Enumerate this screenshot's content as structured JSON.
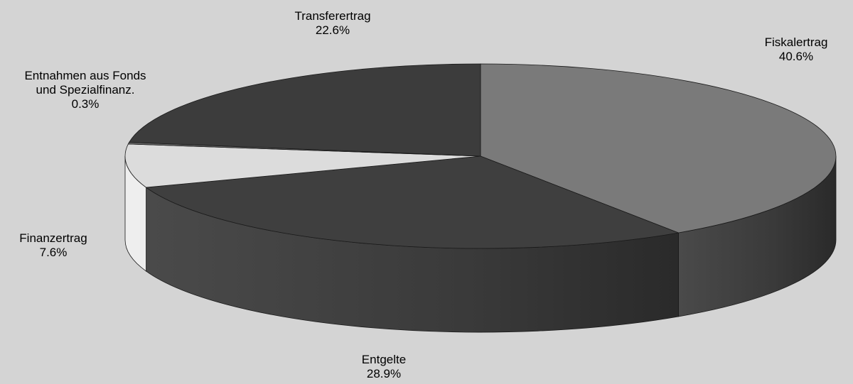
{
  "chart_data": {
    "type": "pie",
    "style": "3d",
    "slices": [
      {
        "label": "Fiskalertrag",
        "percent_label": "40.6%",
        "value": 40.6,
        "color": "#7a7a7a"
      },
      {
        "label": "Entgelte",
        "percent_label": "28.9%",
        "value": 28.9,
        "color": "#3f3f3f"
      },
      {
        "label": "Finanzertrag",
        "percent_label": "7.6%",
        "value": 7.6,
        "color": "#dcdcdc"
      },
      {
        "label": "Entnahmen aus Fonds und Spezialfinanz.",
        "label_lines": [
          "Entnahmen aus Fonds",
          "und Spezialfinanz."
        ],
        "percent_label": "0.3%",
        "value": 0.3,
        "color": "#6a6a6a"
      },
      {
        "label": "Transferertrag",
        "percent_label": "22.6%",
        "value": 22.6,
        "color": "#3c3c3c"
      }
    ]
  }
}
